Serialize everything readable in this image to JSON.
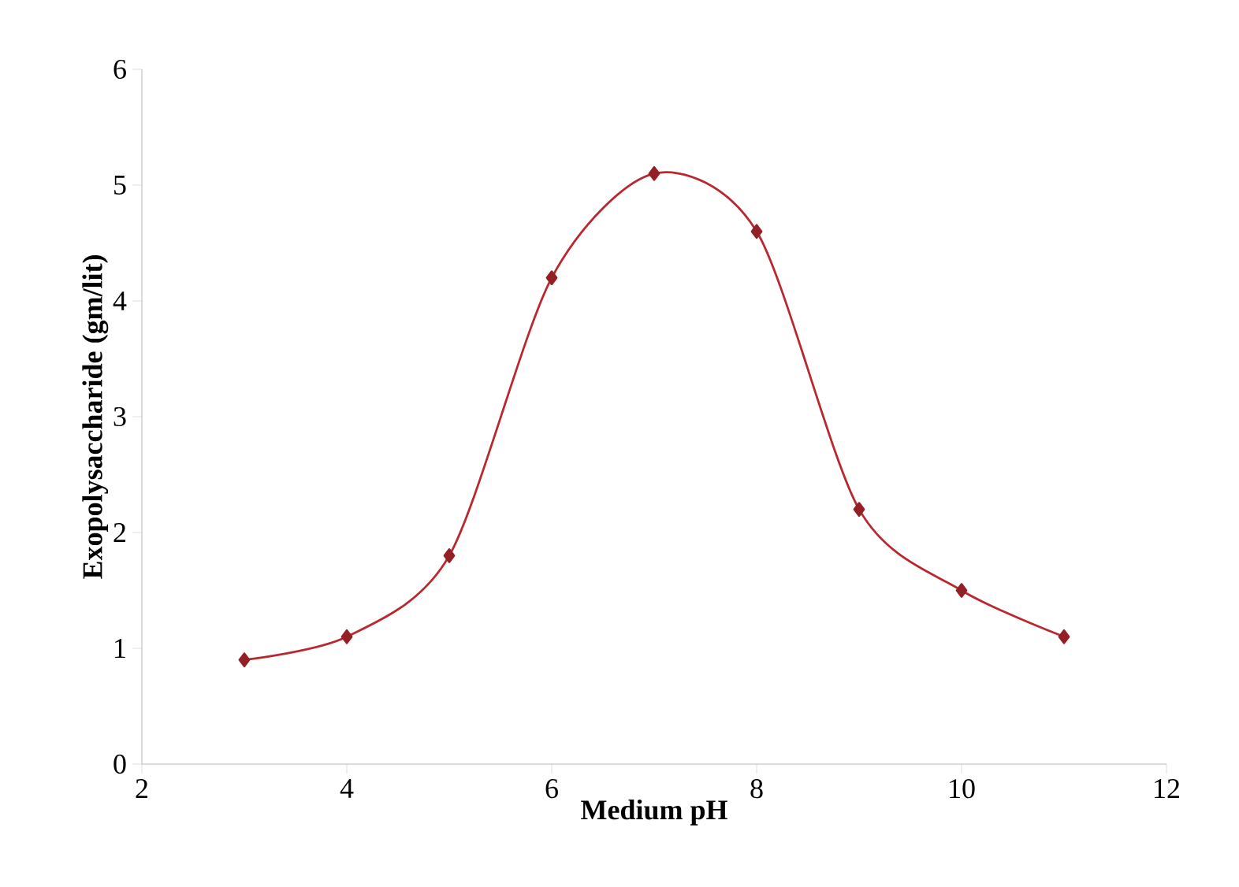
{
  "chart_data": {
    "type": "line",
    "xlabel": "Medium pH",
    "ylabel": "Exopolysaccharide (gm/lit)",
    "x": [
      3,
      4,
      5,
      6,
      7,
      8,
      9,
      10,
      11
    ],
    "series": [
      {
        "color": "#b8282e",
        "values": [
          0.9,
          1.1,
          1.8,
          4.2,
          5.1,
          4.6,
          2.2,
          1.5,
          1.1
        ]
      }
    ],
    "xlim": [
      2,
      12
    ],
    "xticks": [
      2,
      4,
      6,
      8,
      10,
      12
    ],
    "ylim": [
      0,
      6
    ],
    "yticks": [
      0,
      1,
      2,
      3,
      4,
      5,
      6
    ],
    "marker": "diamond",
    "line_style": "solid",
    "grid": false
  }
}
